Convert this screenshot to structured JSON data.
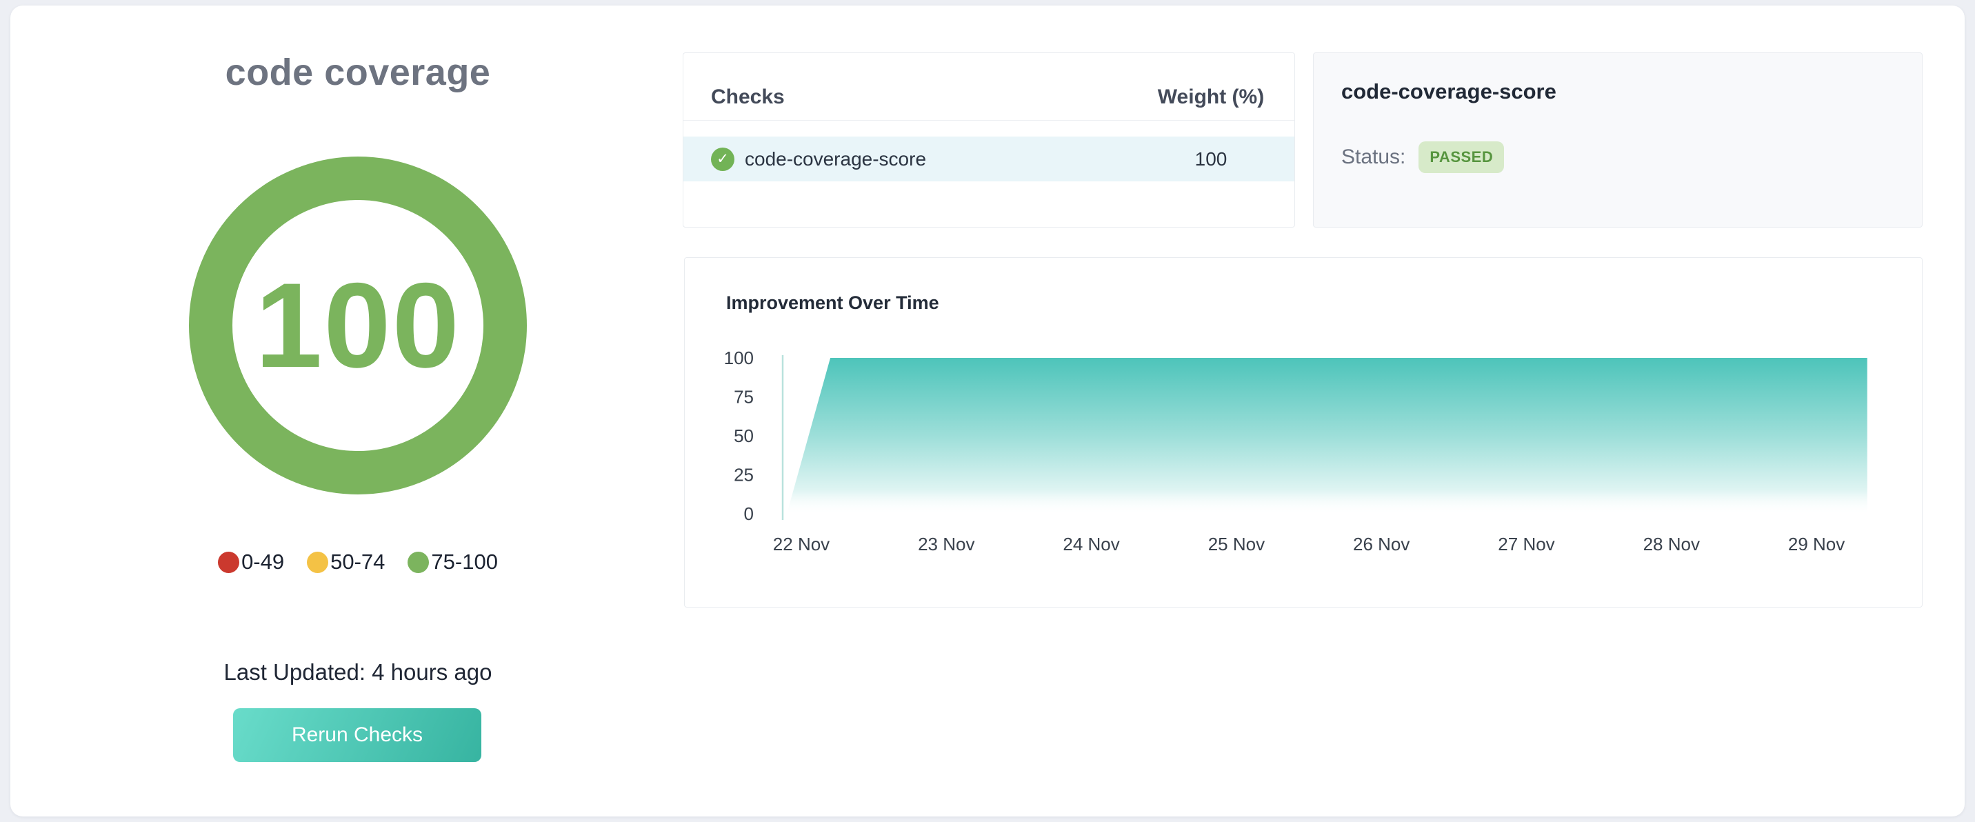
{
  "page": {
    "title": "code coverage"
  },
  "gauge": {
    "value": "100",
    "color": "#7bb45d",
    "legend": [
      {
        "label": "0-49",
        "color": "#cb392e"
      },
      {
        "label": "50-74",
        "color": "#f4c245"
      },
      {
        "label": "75-100",
        "color": "#7cb45e"
      }
    ]
  },
  "meta": {
    "last_updated": "Last Updated: 4 hours ago"
  },
  "actions": {
    "rerun_label": "Rerun Checks",
    "gradient_from": "#69dcca",
    "gradient_to": "#37b4a1"
  },
  "checks_table": {
    "col_checks": "Checks",
    "col_weight": "Weight (%)",
    "rows": [
      {
        "name": "code-coverage-score",
        "weight": "100",
        "status": "passed",
        "status_icon": "check",
        "status_color": "#72b356",
        "row_bg": "#e9f5f9"
      }
    ]
  },
  "detail": {
    "title": "code-coverage-score",
    "status_label": "Status:",
    "status_value": "PASSED",
    "badge_bg": "#d7eac9",
    "badge_text_color": "#57953f"
  },
  "chart_data": {
    "type": "area",
    "title": "Improvement Over Time",
    "categories": [
      "22 Nov",
      "23 Nov",
      "24 Nov",
      "25 Nov",
      "26 Nov",
      "27 Nov",
      "28 Nov",
      "29 Nov"
    ],
    "series": [
      {
        "name": "code-coverage-score",
        "points": [
          {
            "x": -0.1,
            "y": 0
          },
          {
            "x": 0.2,
            "y": 100
          },
          {
            "x": 7.35,
            "y": 100
          }
        ],
        "x_unit": "days offset from 22 Nov tick"
      }
    ],
    "y_ticks": [
      100,
      75,
      50,
      25,
      0
    ],
    "ylim": [
      0,
      100
    ],
    "grid": false,
    "legend_position": "none",
    "area_top_color": "#4dc4ba",
    "area_bottom_color": "#ffffff",
    "axis_line_color": "#b9e2dd",
    "tick_label_color": "#39414c"
  }
}
